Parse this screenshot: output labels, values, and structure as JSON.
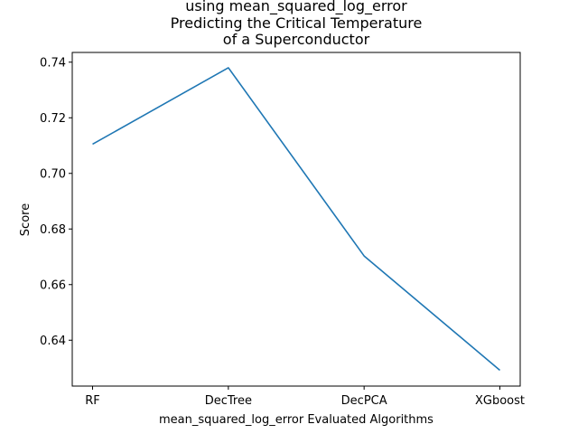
{
  "chart_data": {
    "type": "line",
    "title_lines": [
      "using mean_squared_log_error",
      "Predicting the Critical Temperature",
      "of a Superconductor"
    ],
    "xlabel": "mean_squared_log_error Evaluated Algorithms",
    "ylabel": "Score",
    "categories": [
      "RF",
      "DecTree",
      "DecPCA",
      "XGboost"
    ],
    "series": [
      {
        "values": [
          0.7105,
          0.738,
          0.6703,
          0.6292
        ],
        "color": "#1f77b4"
      }
    ],
    "ylim": [
      0.6235,
      0.7435
    ],
    "yticks": [
      0.64,
      0.66,
      0.68,
      0.7,
      0.72,
      0.74
    ],
    "ytick_labels": [
      "0.64",
      "0.66",
      "0.68",
      "0.70",
      "0.72",
      "0.74"
    ],
    "grid": false
  }
}
